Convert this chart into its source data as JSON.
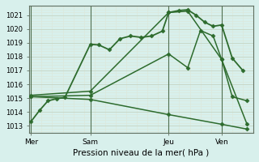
{
  "xlabel": "Pression niveau de la mer( hPa )",
  "background_color": "#d8f0ec",
  "grid_color_major": "#c8d8c8",
  "grid_color_minor": "#dce8dc",
  "line_color": "#2d6b2d",
  "ylim": [
    1012.5,
    1021.7
  ],
  "xlim": [
    -0.1,
    10.5
  ],
  "yticks": [
    1013,
    1014,
    1015,
    1016,
    1017,
    1018,
    1019,
    1020,
    1021
  ],
  "day_labels": [
    "Mer",
    "Sam",
    "Jeu",
    "Ven"
  ],
  "day_positions": [
    0.0,
    2.8,
    6.5,
    9.0
  ],
  "vlines_x": [
    0.0,
    2.8,
    6.5,
    9.0
  ],
  "vlines_color": "#507050",
  "lines": [
    {
      "x": [
        0.0,
        0.4,
        0.8,
        1.2,
        1.6,
        2.8,
        3.2,
        3.7,
        4.2,
        4.7,
        5.2,
        5.7,
        6.2,
        6.5,
        7.0,
        7.4,
        7.8,
        8.2,
        8.6,
        9.0,
        9.5,
        10.0
      ],
      "y": [
        1013.3,
        1014.1,
        1014.8,
        1014.95,
        1015.05,
        1018.9,
        1018.85,
        1018.5,
        1019.3,
        1019.5,
        1019.4,
        1019.5,
        1019.85,
        1021.2,
        1021.35,
        1021.4,
        1021.0,
        1020.5,
        1020.2,
        1020.3,
        1017.9,
        1017.0
      ],
      "marker": "D",
      "markersize": 2.5,
      "linewidth": 1.3
    },
    {
      "x": [
        0.0,
        2.8,
        6.5,
        7.4,
        8.0,
        8.6,
        9.0,
        9.5,
        10.2
      ],
      "y": [
        1015.1,
        1015.2,
        1018.2,
        1017.2,
        1019.9,
        1019.5,
        1017.8,
        1015.1,
        1014.8
      ],
      "marker": "D",
      "markersize": 2.5,
      "linewidth": 1.1
    },
    {
      "x": [
        0.0,
        2.8,
        6.5,
        7.4,
        9.0,
        10.2
      ],
      "y": [
        1015.2,
        1015.5,
        1021.2,
        1021.3,
        1017.8,
        1013.1
      ],
      "marker": "D",
      "markersize": 2.5,
      "linewidth": 1.1
    },
    {
      "x": [
        0.0,
        2.8,
        6.5,
        9.0,
        10.2
      ],
      "y": [
        1015.1,
        1014.9,
        1013.8,
        1013.1,
        1012.75
      ],
      "marker": "D",
      "markersize": 2.5,
      "linewidth": 1.1
    }
  ],
  "xlabel_fontsize": 7.5,
  "ytick_fontsize": 6,
  "xtick_fontsize": 6.5
}
